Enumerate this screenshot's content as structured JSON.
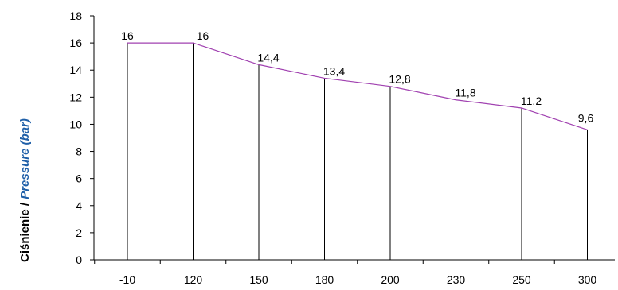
{
  "chart_data": {
    "type": "line",
    "categories": [
      "-10",
      "120",
      "150",
      "180",
      "200",
      "230",
      "250",
      "300"
    ],
    "values": [
      16,
      16,
      14.4,
      13.4,
      12.8,
      11.8,
      11.2,
      9.6
    ],
    "data_labels": [
      "16",
      "16",
      "14,4",
      "13,4",
      "12,8",
      "11,8",
      "11,2",
      "9,6"
    ],
    "title": "",
    "xlabel": "",
    "ylabel_part1": "Ciśnienie  / ",
    "ylabel_part2": "Pressure (bar)",
    "ylim": [
      0,
      18
    ],
    "yticks": [
      "0",
      "2",
      "4",
      "6",
      "8",
      "10",
      "12",
      "14",
      "16",
      "18"
    ],
    "grid": false,
    "legend": "none",
    "line_color": "#a040b0",
    "drop_line_color": "#000000"
  }
}
